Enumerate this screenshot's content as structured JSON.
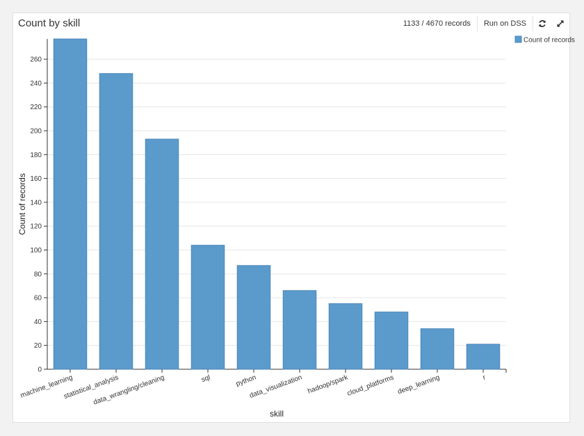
{
  "header": {
    "title": "Count by skill",
    "records": "1133 / 4670 records",
    "run_label": "Run on DSS",
    "refresh_icon": "refresh-icon",
    "expand_icon": "expand-icon"
  },
  "colors": {
    "bar": "#5b9bcc",
    "bar_stroke": "#4a86b8",
    "grid": "#e6e6e6",
    "axis": "#333333"
  },
  "chart_data": {
    "type": "bar",
    "title": "Count by skill",
    "xlabel": "skill",
    "ylabel": "Count of records",
    "categories": [
      "machine_learning",
      "statistical_analysis",
      "data_wrangling/cleaning",
      "sql",
      "python",
      "data_visualization",
      "hadoop/spark",
      "cloud_platforms",
      "deep_learning",
      "r"
    ],
    "series": [
      {
        "name": "Count of records",
        "values": [
          277,
          248,
          193,
          104,
          87,
          66,
          55,
          48,
          34,
          21
        ]
      }
    ],
    "ylim": [
      0,
      277
    ],
    "yticks": [
      0,
      20,
      40,
      60,
      80,
      100,
      120,
      140,
      160,
      180,
      200,
      220,
      240,
      260
    ],
    "grid": true,
    "legend_position": "top-right"
  }
}
